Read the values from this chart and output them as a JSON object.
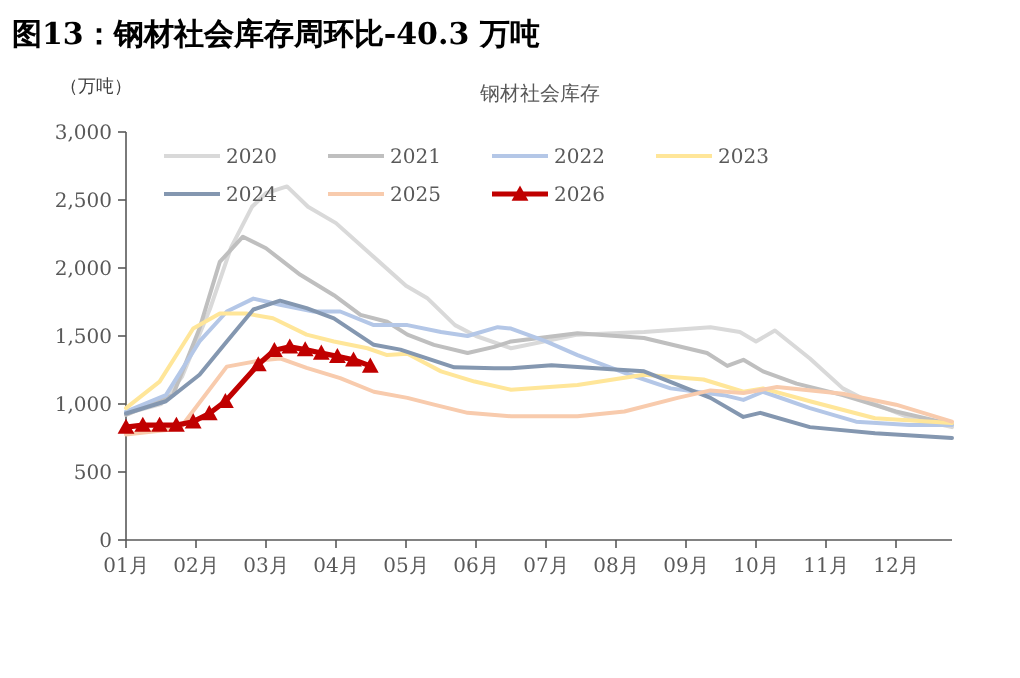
{
  "chart_data": {
    "type": "line",
    "title": "图13：钢材社会库存周环比-40.3 万吨",
    "subtitle": "钢材社会库存",
    "ylabel": "（万吨）",
    "xlim": [
      1,
      12.8
    ],
    "xticks": [
      {
        "value": 1,
        "label": "01月"
      },
      {
        "value": 2,
        "label": "02月"
      },
      {
        "value": 3,
        "label": "03月"
      },
      {
        "value": 4,
        "label": "04月"
      },
      {
        "value": 5,
        "label": "05月"
      },
      {
        "value": 6,
        "label": "06月"
      },
      {
        "value": 7,
        "label": "07月"
      },
      {
        "value": 8,
        "label": "08月"
      },
      {
        "value": 9,
        "label": "09月"
      },
      {
        "value": 10,
        "label": "10月"
      },
      {
        "value": 11,
        "label": "11月"
      },
      {
        "value": 12,
        "label": "12月"
      }
    ],
    "ylim": [
      0,
      3000
    ],
    "yticks": [
      0,
      500,
      {
        "value": 1000,
        "label": "1,000"
      },
      {
        "value": 1500,
        "label": "1,500"
      },
      {
        "value": 2000,
        "label": "2,000"
      },
      {
        "value": 2500,
        "label": "2,500"
      },
      {
        "value": 3000,
        "label": "3,000"
      }
    ],
    "legend": "top",
    "grid": false,
    "series": [
      {
        "name": "2020",
        "color": "#d9d9d9",
        "marker": "none",
        "x": [
          1,
          1.5,
          1.8,
          2.2,
          2.5,
          2.8,
          3.0,
          3.3,
          3.6,
          4.0,
          4.5,
          5.0,
          5.3,
          5.7,
          6.0,
          6.5,
          7.45,
          8.4,
          9.35,
          9.77,
          10.0,
          10.27,
          10.77,
          11.24,
          11.6,
          12.19,
          12.8
        ],
        "values": [
          930,
          1000,
          1200,
          1700,
          2150,
          2450,
          2550,
          2600,
          2450,
          2330,
          2100,
          1870,
          1780,
          1580,
          1500,
          1410,
          1510,
          1530,
          1565,
          1530,
          1460,
          1540,
          1335,
          1115,
          1020,
          900,
          830
        ]
      },
      {
        "name": "2021",
        "color": "#bfbfbf",
        "marker": "none",
        "x": [
          1,
          1.67,
          2.05,
          2.34,
          2.67,
          3.0,
          3.49,
          3.97,
          4.35,
          4.73,
          5.02,
          5.4,
          5.88,
          6.26,
          6.5,
          7.45,
          8.4,
          9.3,
          9.59,
          9.82,
          10.1,
          10.58,
          11.24,
          12.0,
          12.8
        ],
        "values": [
          920,
          1065,
          1555,
          2045,
          2230,
          2145,
          1950,
          1800,
          1655,
          1605,
          1510,
          1435,
          1375,
          1420,
          1460,
          1520,
          1485,
          1375,
          1280,
          1325,
          1240,
          1150,
          1065,
          945,
          850
        ]
      },
      {
        "name": "2022",
        "color": "#b4c7e7",
        "marker": "none",
        "x": [
          1,
          1.57,
          2.05,
          2.44,
          2.82,
          3.2,
          3.68,
          4.06,
          4.54,
          5.02,
          5.5,
          5.88,
          6.31,
          6.5,
          7.0,
          7.45,
          8.2,
          8.78,
          9.54,
          9.82,
          10.1,
          10.77,
          11.43,
          12.19,
          12.8
        ],
        "values": [
          945,
          1065,
          1460,
          1680,
          1775,
          1730,
          1680,
          1680,
          1580,
          1580,
          1530,
          1500,
          1565,
          1555,
          1460,
          1360,
          1215,
          1115,
          1065,
          1030,
          1090,
          970,
          870,
          845,
          845
        ]
      },
      {
        "name": "2023",
        "color": "#ffe699",
        "marker": "none",
        "x": [
          1,
          1.48,
          1.96,
          2.34,
          2.72,
          3.1,
          3.58,
          3.97,
          4.45,
          4.73,
          5.02,
          5.5,
          5.98,
          6.5,
          7.45,
          8.4,
          9.25,
          9.82,
          10.1,
          10.77,
          11.7,
          12.8
        ],
        "values": [
          970,
          1165,
          1555,
          1665,
          1665,
          1630,
          1510,
          1460,
          1410,
          1360,
          1370,
          1240,
          1165,
          1105,
          1140,
          1215,
          1180,
          1090,
          1115,
          1020,
          895,
          860
        ]
      },
      {
        "name": "2024",
        "color": "#8497b0",
        "marker": "none",
        "x": [
          1,
          1.57,
          2.05,
          2.44,
          2.82,
          3.2,
          3.58,
          3.97,
          4.54,
          4.92,
          5.3,
          5.69,
          6.26,
          6.5,
          7.08,
          7.93,
          8.4,
          9.35,
          9.82,
          10.06,
          10.77,
          11.7,
          12.8
        ],
        "values": [
          930,
          1020,
          1215,
          1460,
          1695,
          1760,
          1705,
          1630,
          1435,
          1400,
          1335,
          1270,
          1262,
          1262,
          1285,
          1255,
          1240,
          1045,
          905,
          935,
          830,
          785,
          750
        ]
      },
      {
        "name": "2025",
        "color": "#f8cbad",
        "marker": "none",
        "x": [
          1,
          1.77,
          2.44,
          2.91,
          3.2,
          3.58,
          4.06,
          4.54,
          5.02,
          5.4,
          5.88,
          6.5,
          7.45,
          8.12,
          8.88,
          9.35,
          9.82,
          10.3,
          11.24,
          12.0,
          12.8
        ],
        "values": [
          775,
          820,
          1275,
          1320,
          1335,
          1265,
          1190,
          1090,
          1045,
          995,
          935,
          910,
          910,
          945,
          1045,
          1100,
          1080,
          1125,
          1075,
          995,
          870
        ]
      },
      {
        "name": "2026",
        "color": "#c00000",
        "marker": "triangle",
        "x": [
          1.0,
          1.24,
          1.48,
          1.72,
          1.96,
          2.19,
          2.42,
          2.89,
          3.12,
          3.34,
          3.56,
          3.79,
          4.02,
          4.25,
          4.49
        ],
        "values": [
          830,
          845,
          845,
          845,
          870,
          930,
          1020,
          1290,
          1395,
          1420,
          1400,
          1375,
          1350,
          1325,
          1280
        ]
      }
    ]
  }
}
